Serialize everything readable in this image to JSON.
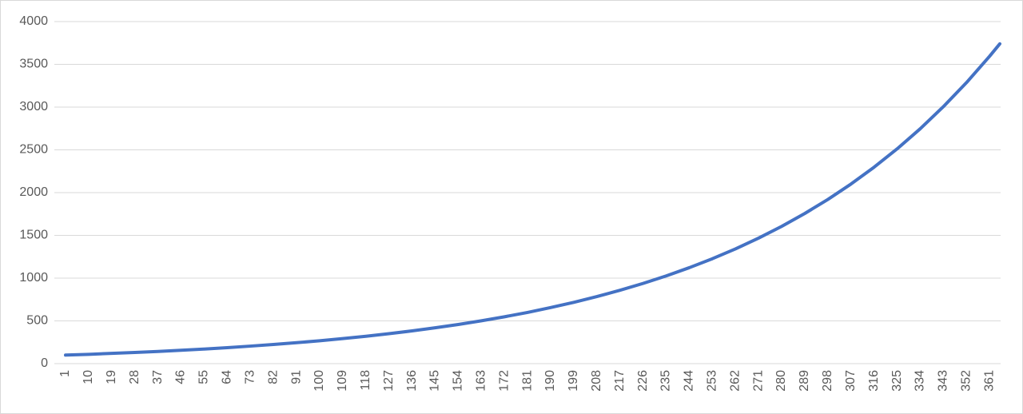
{
  "chart_data": {
    "type": "line",
    "x": [
      1,
      10,
      19,
      28,
      37,
      46,
      55,
      64,
      73,
      82,
      91,
      100,
      109,
      118,
      127,
      136,
      145,
      154,
      163,
      172,
      181,
      190,
      199,
      208,
      217,
      226,
      235,
      244,
      253,
      262,
      271,
      280,
      289,
      298,
      307,
      316,
      325,
      334,
      343,
      352,
      361,
      365
    ],
    "series": [
      {
        "color": "#4472c4",
        "values": [
          100,
          109,
          120,
          131,
          143,
          156,
          171,
          187,
          205,
          224,
          245,
          268,
          293,
          320,
          350,
          383,
          419,
          458,
          501,
          548,
          599,
          656,
          717,
          784,
          858,
          938,
          1026,
          1122,
          1227,
          1342,
          1468,
          1605,
          1756,
          1920,
          2100,
          2297,
          2512,
          2747,
          3005,
          3286,
          3594,
          3740
        ]
      }
    ],
    "xlim": [
      1,
      365
    ],
    "xticks": [
      1,
      10,
      19,
      28,
      37,
      46,
      55,
      64,
      73,
      82,
      91,
      100,
      109,
      118,
      127,
      136,
      145,
      154,
      163,
      172,
      181,
      190,
      199,
      208,
      217,
      226,
      235,
      244,
      253,
      262,
      271,
      280,
      289,
      298,
      307,
      316,
      325,
      334,
      343,
      352,
      361
    ],
    "ylim": [
      0,
      4000
    ],
    "yticks": [
      0,
      500,
      1000,
      1500,
      2000,
      2500,
      3000,
      3500,
      4000
    ],
    "grid": true
  }
}
